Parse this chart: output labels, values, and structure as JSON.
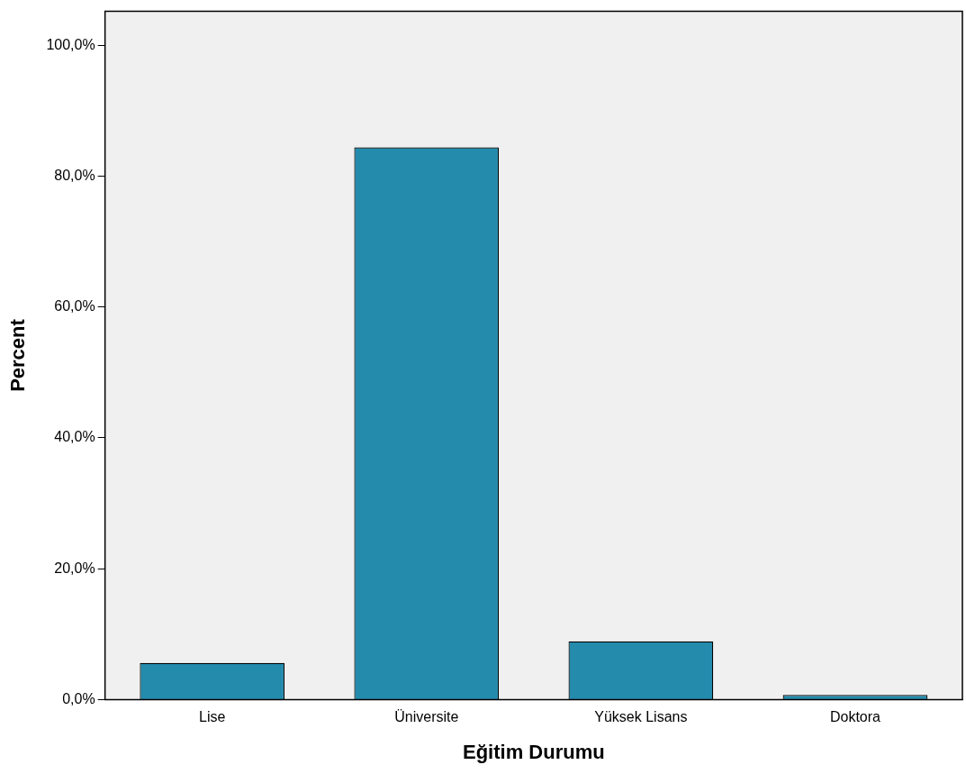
{
  "chart_data": {
    "type": "bar",
    "xlabel": "Eğitim Durumu",
    "ylabel": "Percent",
    "categories": [
      "Lise",
      "Üniversite",
      "Yüksek Lisans",
      "Doktora"
    ],
    "values": [
      5.6,
      84.4,
      8.9,
      0.7
    ],
    "color": "#248bac",
    "ylim": [
      0,
      105.2
    ],
    "yticks": [
      {
        "value": 0,
        "label": "0,0%"
      },
      {
        "value": 20,
        "label": "20,0%"
      },
      {
        "value": 40,
        "label": "40,0%"
      },
      {
        "value": 60,
        "label": "60,0%"
      },
      {
        "value": 80,
        "label": "80,0%"
      },
      {
        "value": 100,
        "label": "100,0%"
      }
    ],
    "grid": false,
    "legend": false
  }
}
